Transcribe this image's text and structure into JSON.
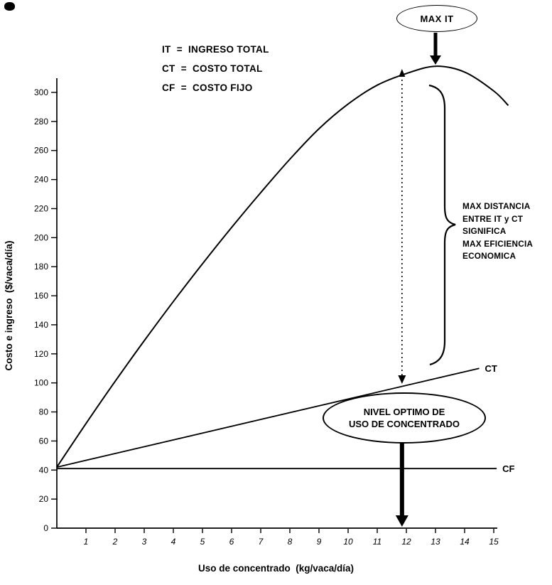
{
  "figure": {
    "legend": [
      "IT  =  INGRESO TOTAL",
      "CT  =  COSTO TOTAL",
      "CF  =  COSTO FIJO"
    ],
    "annotations": {
      "max_it_label": "MAX  IT",
      "optimal_line1": "NIVEL OPTIMO DE",
      "optimal_line2": "USO DE CONCENTRADO",
      "brace_lines": [
        "MAX DISTANCIA",
        "ENTRE IT y CT",
        "SIGNIFICA",
        "MAX EFICIENCIA",
        "ECONOMICA"
      ]
    }
  },
  "chart_data": {
    "type": "line",
    "title": "",
    "xlabel": "Uso de concentrado  (kg/vaca/día)",
    "ylabel": "Costo e ingreso  ($/vaca/día)",
    "xlim": [
      0,
      15.5
    ],
    "ylim": [
      0,
      320
    ],
    "grid": false,
    "xticks": [
      1,
      2,
      3,
      4,
      5,
      6,
      7,
      8,
      9,
      10,
      11,
      12,
      13,
      14,
      15
    ],
    "yticks": [
      0,
      20,
      40,
      60,
      80,
      100,
      120,
      140,
      160,
      180,
      200,
      220,
      240,
      260,
      280,
      300
    ],
    "series": [
      {
        "name": "IT",
        "label": "",
        "points": [
          [
            0,
            42
          ],
          [
            1,
            72
          ],
          [
            2,
            101
          ],
          [
            3,
            129
          ],
          [
            4,
            156
          ],
          [
            5,
            182
          ],
          [
            6,
            207
          ],
          [
            7,
            231
          ],
          [
            8,
            254
          ],
          [
            9,
            275
          ],
          [
            10,
            292
          ],
          [
            11,
            305
          ],
          [
            12,
            313
          ],
          [
            13,
            318
          ],
          [
            14,
            314
          ],
          [
            15,
            301
          ],
          [
            15.5,
            291
          ]
        ]
      },
      {
        "name": "CT",
        "label": "CT",
        "points": [
          [
            0,
            42
          ],
          [
            14.5,
            110
          ]
        ]
      },
      {
        "name": "CF",
        "label": "CF",
        "points": [
          [
            0,
            41
          ],
          [
            15.1,
            41
          ]
        ]
      }
    ],
    "markers": {
      "optimal_x": 11.85,
      "max_it_x": 13,
      "max_it_value": 318,
      "it_at_optimal": 312,
      "ct_at_optimal": 98
    }
  }
}
